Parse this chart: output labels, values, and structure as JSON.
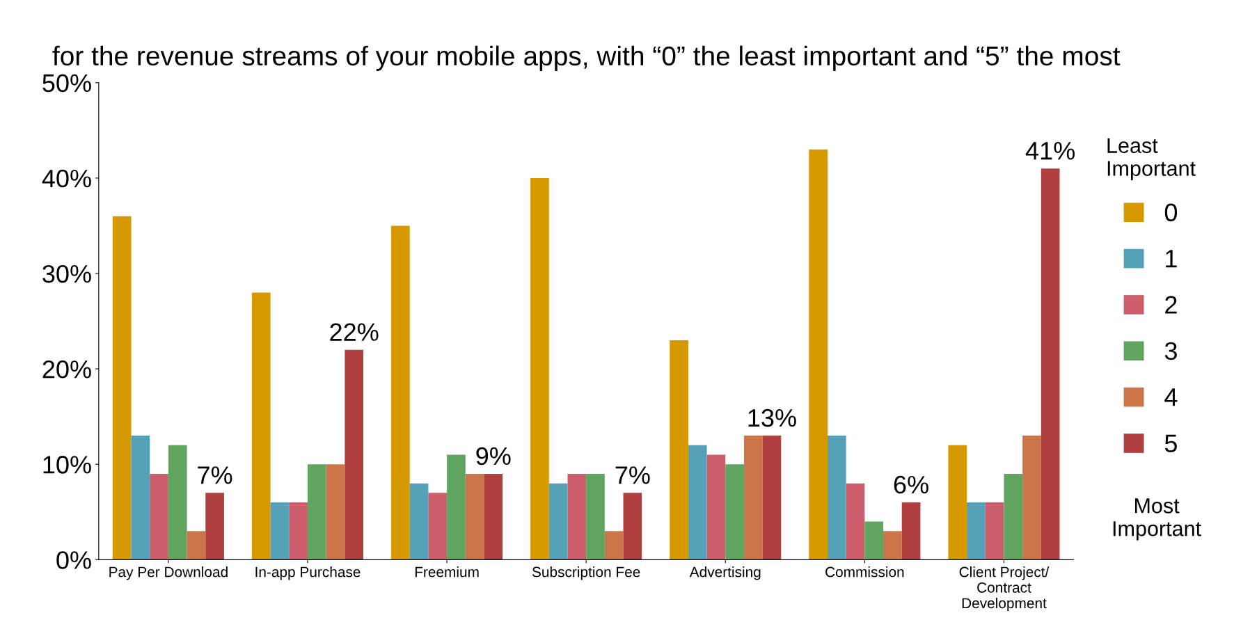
{
  "chart_data": {
    "type": "bar",
    "title": "for the revenue streams of your mobile apps, with “0” the least important and “5” the most",
    "categories": [
      "Pay Per Download",
      "In-app Purchase",
      "Freemium",
      "Subscription Fee",
      "Advertising",
      "Commission",
      "Client Project/\nContract\nDevelopment"
    ],
    "series": [
      {
        "name": "0",
        "color": "#d69a00",
        "values": [
          36,
          28,
          35,
          40,
          23,
          43,
          12
        ]
      },
      {
        "name": "1",
        "color": "#55a2b8",
        "values": [
          13,
          6,
          8,
          8,
          12,
          13,
          6
        ]
      },
      {
        "name": "2",
        "color": "#cd5e6e",
        "values": [
          9,
          6,
          7,
          9,
          11,
          8,
          6
        ]
      },
      {
        "name": "3",
        "color": "#60a460",
        "values": [
          12,
          10,
          11,
          9,
          10,
          4,
          9
        ]
      },
      {
        "name": "4",
        "color": "#cc7548",
        "values": [
          3,
          10,
          9,
          3,
          13,
          3,
          13
        ]
      },
      {
        "name": "5",
        "color": "#b04040",
        "values": [
          7,
          22,
          9,
          7,
          13,
          6,
          41
        ],
        "value_labels": [
          "7%",
          "22%",
          "9%",
          "7%",
          "13%",
          "6%",
          "41%"
        ]
      }
    ],
    "ylim": [
      0,
      50
    ],
    "yticks": [
      {
        "value": 0,
        "label": "0%"
      },
      {
        "value": 10,
        "label": "10%"
      },
      {
        "value": 20,
        "label": "20%"
      },
      {
        "value": 30,
        "label": "30%"
      },
      {
        "value": 40,
        "label": "40%"
      },
      {
        "value": 50,
        "label": "50%"
      }
    ],
    "legend_title": "Least Important",
    "annotations": [
      "Most Important"
    ],
    "legend": "right",
    "grid": false
  }
}
